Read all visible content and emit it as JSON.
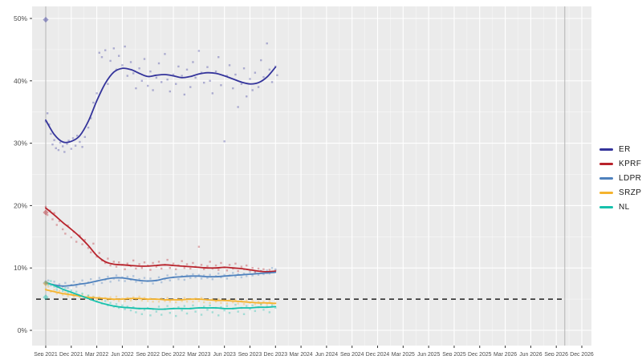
{
  "chart_data": {
    "type": "scatter",
    "title": "",
    "description": "Opinion polling trend chart for Russian parties, Sep 2021 - Dec 2026 axis, data through Dec 2023",
    "ylabel": "",
    "xlabel": "",
    "ylim": [
      0,
      50
    ],
    "y_tick_labels": [
      "0%",
      "10%",
      "20%",
      "30%",
      "40%",
      "50%"
    ],
    "y_tick_values": [
      0,
      10,
      20,
      30,
      40,
      50
    ],
    "x_tick_labels": [
      "Sep 2021",
      "Dec 2021",
      "Mar 2022",
      "Jun 2022",
      "Sep 2022",
      "Dec 2022",
      "Mar 2023",
      "Jun 2023",
      "Sep 2023",
      "Dec 2023",
      "Mar 2024",
      "Jun 2024",
      "Sep 2024",
      "Dec 2024",
      "Mar 2025",
      "Jun 2025",
      "Sep 2025",
      "Dec 2025",
      "Mar 2026",
      "Jun 2026",
      "Sep 2026",
      "Dec 2026"
    ],
    "months_per_tick": 3,
    "grid": true,
    "legend_position": "right",
    "panel_bg": "#ebebeb",
    "grid_color": "#ffffff",
    "axis_text_color": "#4d4d4d",
    "threshold": {
      "value": 5,
      "color": "#3d3d3d",
      "style": "dashed"
    },
    "event_lines": {
      "months": [
        0,
        61
      ],
      "color": "#b3b3b3"
    },
    "election_markers": {
      "month": 0,
      "shape": "diamond",
      "opacity": 0.45
    },
    "series": [
      {
        "name": "ER",
        "color": "#34349b",
        "election_result": 49.8,
        "trend_months_step": 1,
        "trend": [
          33.7,
          31.4,
          30.2,
          30.3,
          31.2,
          33.5,
          36.8,
          39.6,
          41.4,
          42.0,
          41.8,
          41.2,
          40.7,
          40.9,
          41.0,
          40.8,
          40.5,
          40.7,
          41.1,
          41.3,
          41.2,
          40.8,
          40.3,
          39.8,
          39.5,
          39.7,
          40.6,
          42.2
        ],
        "points": [
          0,
          33.5,
          0.2,
          34.8,
          0.4,
          33.0,
          0.6,
          31.5,
          0.8,
          29.8,
          1.0,
          30.5,
          1.2,
          29.2,
          1.5,
          28.9,
          1.7,
          30.1,
          2.0,
          29.5,
          2.2,
          28.6,
          2.5,
          29.9,
          2.7,
          30.4,
          3.0,
          29.1,
          3.2,
          30.8,
          3.5,
          29.6,
          3.7,
          31.2,
          4.0,
          30.2,
          4.3,
          29.4,
          4.6,
          31.0,
          5.0,
          32.5,
          5.3,
          34.0,
          5.6,
          36.5,
          6.0,
          38.0,
          6.3,
          44.5,
          6.6,
          43.8,
          7.0,
          44.9,
          7.3,
          39.5,
          7.6,
          43.2,
          8.0,
          45.2,
          8.3,
          41.8,
          8.6,
          44.0,
          9.0,
          42.5,
          9.3,
          45.5,
          9.6,
          40.8,
          10.0,
          43.0,
          10.3,
          41.2,
          10.6,
          38.8,
          11.0,
          42.0,
          11.3,
          40.0,
          11.6,
          43.5,
          12.0,
          39.2,
          12.3,
          41.5,
          12.6,
          38.5,
          13.0,
          40.5,
          13.3,
          42.8,
          13.6,
          39.8,
          14.0,
          44.3,
          14.3,
          40.2,
          14.6,
          38.3,
          15.0,
          41.0,
          15.3,
          39.5,
          15.6,
          42.3,
          16.0,
          40.8,
          16.3,
          37.8,
          16.6,
          41.8,
          17.0,
          39.0,
          17.3,
          43.0,
          17.6,
          40.5,
          18.0,
          44.8,
          18.3,
          41.3,
          18.6,
          39.7,
          19.0,
          42.2,
          19.3,
          40.0,
          19.6,
          38.0,
          20.0,
          41.5,
          20.3,
          43.8,
          20.6,
          39.3,
          21.0,
          30.3,
          21.3,
          40.8,
          21.6,
          42.5,
          22.0,
          38.8,
          22.3,
          41.0,
          22.6,
          35.8,
          23.0,
          39.5,
          23.3,
          42.0,
          23.6,
          37.5,
          24.0,
          40.3,
          24.3,
          38.5,
          24.6,
          41.3,
          25.0,
          39.0,
          25.3,
          43.3,
          25.6,
          40.6,
          26.0,
          46.0,
          26.3,
          41.8,
          26.6,
          39.8,
          27.0,
          42.3,
          27.2,
          40.9
        ]
      },
      {
        "name": "KPRF",
        "color": "#b8222b",
        "election_result": 18.9,
        "trend_months_step": 1,
        "trend": [
          19.6,
          18.5,
          17.3,
          16.2,
          15.0,
          13.6,
          12.0,
          11.0,
          10.6,
          10.5,
          10.4,
          10.3,
          10.3,
          10.4,
          10.5,
          10.4,
          10.3,
          10.2,
          10.1,
          10.0,
          10.0,
          10.1,
          10.0,
          9.9,
          9.7,
          9.5,
          9.4,
          9.5
        ],
        "points": [
          0,
          19.8,
          0.2,
          18.5,
          0.5,
          19.2,
          0.8,
          17.8,
          1.0,
          18.8,
          1.3,
          16.9,
          1.6,
          17.5,
          2.0,
          16.2,
          2.3,
          15.5,
          2.6,
          16.8,
          3.0,
          14.9,
          3.3,
          15.8,
          3.6,
          14.2,
          4.0,
          15.2,
          4.3,
          13.8,
          4.6,
          14.5,
          5.0,
          13.2,
          5.3,
          12.5,
          5.6,
          13.9,
          6.0,
          11.8,
          6.3,
          12.4,
          6.6,
          11.2,
          7.0,
          10.8,
          7.3,
          11.5,
          7.6,
          10.4,
          8.0,
          11.0,
          8.3,
          10.2,
          8.6,
          10.9,
          9.0,
          10.5,
          9.3,
          9.8,
          9.6,
          10.7,
          10.0,
          10.3,
          10.3,
          11.2,
          10.6,
          9.9,
          11.0,
          10.6,
          11.3,
          10.0,
          11.6,
          10.9,
          12.0,
          10.4,
          12.3,
          9.7,
          12.6,
          10.8,
          13.0,
          10.2,
          13.3,
          11.0,
          13.6,
          9.9,
          14.0,
          10.5,
          14.3,
          11.3,
          14.6,
          10.0,
          15.0,
          10.7,
          15.3,
          9.8,
          15.6,
          10.4,
          16.0,
          11.1,
          16.3,
          10.0,
          16.6,
          10.6,
          17.0,
          9.9,
          17.3,
          10.8,
          17.6,
          10.2,
          18.0,
          13.4,
          18.3,
          10.5,
          18.6,
          9.8,
          19.0,
          10.3,
          19.3,
          11.0,
          19.6,
          9.9,
          20.0,
          10.4,
          20.3,
          9.7,
          20.6,
          10.8,
          21.0,
          10.1,
          21.3,
          9.6,
          21.6,
          10.5,
          22.0,
          9.9,
          22.3,
          10.7,
          22.6,
          9.5,
          23.0,
          10.2,
          23.3,
          9.8,
          23.6,
          10.4,
          24.0,
          9.6,
          24.3,
          10.0,
          24.6,
          9.3,
          25.0,
          9.9,
          25.3,
          9.5,
          25.6,
          9.8,
          26.0,
          9.2,
          26.3,
          9.7,
          26.6,
          9.4,
          27.0,
          9.6
        ]
      },
      {
        "name": "LDPR",
        "color": "#4e81bd",
        "election_result": 7.6,
        "trend_months_step": 1,
        "trend": [
          7.6,
          7.3,
          7.1,
          7.2,
          7.4,
          7.6,
          7.9,
          8.2,
          8.4,
          8.4,
          8.2,
          8.0,
          7.9,
          8.0,
          8.3,
          8.5,
          8.6,
          8.7,
          8.7,
          8.6,
          8.6,
          8.7,
          8.8,
          8.9,
          9.0,
          9.1,
          9.2,
          9.3
        ],
        "points": [
          0,
          7.5,
          0.3,
          8.0,
          0.6,
          7.2,
          1.0,
          7.8,
          1.3,
          6.9,
          1.6,
          7.4,
          2.0,
          7.0,
          2.3,
          7.6,
          2.6,
          6.8,
          3.0,
          7.3,
          3.3,
          7.8,
          3.6,
          7.0,
          4.0,
          7.5,
          4.3,
          8.0,
          4.6,
          7.2,
          5.0,
          7.7,
          5.3,
          8.2,
          5.6,
          7.4,
          6.0,
          7.9,
          6.3,
          8.4,
          6.6,
          7.6,
          7.0,
          8.1,
          7.3,
          8.6,
          7.6,
          7.8,
          8.0,
          8.3,
          8.3,
          8.8,
          8.6,
          8.0,
          9.0,
          8.5,
          9.3,
          7.9,
          9.6,
          8.6,
          10.0,
          8.1,
          10.3,
          8.7,
          10.6,
          7.8,
          11.0,
          8.2,
          11.3,
          7.6,
          11.6,
          8.4,
          12.0,
          7.9,
          12.3,
          8.3,
          12.6,
          7.5,
          13.0,
          8.0,
          13.3,
          8.5,
          13.6,
          7.7,
          14.0,
          8.2,
          14.3,
          8.8,
          14.6,
          8.0,
          15.0,
          8.5,
          15.3,
          9.0,
          15.6,
          8.2,
          16.0,
          8.7,
          16.3,
          8.1,
          16.6,
          8.8,
          17.0,
          8.4,
          17.3,
          9.0,
          17.6,
          8.5,
          18.0,
          8.9,
          18.3,
          8.3,
          18.6,
          8.8,
          19.0,
          8.4,
          19.3,
          8.9,
          19.6,
          8.2,
          20.0,
          8.7,
          20.3,
          9.1,
          20.6,
          8.5,
          21.0,
          8.9,
          21.3,
          8.3,
          21.6,
          8.8,
          22.0,
          9.2,
          22.3,
          8.6,
          22.6,
          9.0,
          23.0,
          8.5,
          23.3,
          9.1,
          23.6,
          8.7,
          24.0,
          9.3,
          24.3,
          8.8,
          24.6,
          9.4,
          25.0,
          8.9,
          25.3,
          9.5,
          25.6,
          9.0,
          26.0,
          9.6,
          26.3,
          9.1,
          26.6,
          10.0,
          27.0,
          9.8
        ]
      },
      {
        "name": "SRZP",
        "color": "#f5b32e",
        "election_result": 7.5,
        "trend_months_step": 1,
        "trend": [
          6.5,
          6.2,
          5.9,
          5.7,
          5.5,
          5.3,
          5.2,
          5.1,
          5.0,
          5.0,
          5.1,
          5.1,
          5.0,
          5.0,
          4.9,
          4.9,
          4.9,
          5.0,
          5.0,
          4.9,
          4.8,
          4.8,
          4.7,
          4.6,
          4.5,
          4.4,
          4.4,
          4.3
        ],
        "points": [
          0,
          6.6,
          0.3,
          7.0,
          0.6,
          6.2,
          1.0,
          6.5,
          1.3,
          5.9,
          1.6,
          6.3,
          2.0,
          5.7,
          2.3,
          6.1,
          2.6,
          5.5,
          3.0,
          5.9,
          3.3,
          5.4,
          3.6,
          5.8,
          4.0,
          5.3,
          4.3,
          5.7,
          4.6,
          5.1,
          5.0,
          5.5,
          5.3,
          5.0,
          5.6,
          5.4,
          6.0,
          4.9,
          6.3,
          5.3,
          6.6,
          4.8,
          7.0,
          5.2,
          7.3,
          4.8,
          7.6,
          5.3,
          8.0,
          4.9,
          8.3,
          5.4,
          8.6,
          4.7,
          9.0,
          5.1,
          9.3,
          4.7,
          9.6,
          5.2,
          10.0,
          4.8,
          10.3,
          5.3,
          10.6,
          4.9,
          11.0,
          5.4,
          11.3,
          4.8,
          11.6,
          5.2,
          12.0,
          4.7,
          12.3,
          5.1,
          12.6,
          4.6,
          13.0,
          5.0,
          13.3,
          4.6,
          13.6,
          5.1,
          14.0,
          4.7,
          14.3,
          5.2,
          14.6,
          4.6,
          15.0,
          5.0,
          15.3,
          4.5,
          15.6,
          5.1,
          16.0,
          4.7,
          16.3,
          5.2,
          16.6,
          4.6,
          17.0,
          5.0,
          17.3,
          4.6,
          17.6,
          5.1,
          18.0,
          4.7,
          18.3,
          5.2,
          18.6,
          4.5,
          19.0,
          4.9,
          19.3,
          4.4,
          19.6,
          5.0,
          20.0,
          4.6,
          20.3,
          5.0,
          20.6,
          4.4,
          21.0,
          4.8,
          21.3,
          4.3,
          21.6,
          4.9,
          22.0,
          4.5,
          22.3,
          4.9,
          22.6,
          4.3,
          23.0,
          4.7,
          23.3,
          4.2,
          23.6,
          4.8,
          24.0,
          4.4,
          24.3,
          4.8,
          24.6,
          4.2,
          25.0,
          4.6,
          25.3,
          4.1,
          25.6,
          4.6,
          26.0,
          4.2,
          26.3,
          4.7,
          26.6,
          4.3,
          27.0,
          4.4
        ]
      },
      {
        "name": "NL",
        "color": "#17c1ac",
        "election_result": 5.3,
        "trend_months_step": 1,
        "trend": [
          7.7,
          7.2,
          6.6,
          6.1,
          5.6,
          5.1,
          4.6,
          4.2,
          3.9,
          3.7,
          3.6,
          3.5,
          3.5,
          3.4,
          3.4,
          3.5,
          3.5,
          3.5,
          3.6,
          3.6,
          3.6,
          3.5,
          3.5,
          3.6,
          3.6,
          3.7,
          3.7,
          3.8
        ],
        "points": [
          0,
          7.8,
          0.3,
          7.3,
          0.6,
          7.9,
          1.0,
          7.0,
          1.3,
          6.5,
          1.6,
          7.1,
          2.0,
          6.3,
          2.3,
          6.8,
          2.6,
          6.0,
          3.0,
          6.4,
          3.3,
          5.8,
          3.6,
          6.2,
          4.0,
          5.5,
          4.3,
          5.9,
          4.6,
          5.2,
          5.0,
          5.6,
          5.3,
          4.9,
          5.6,
          5.3,
          6.0,
          4.6,
          6.3,
          5.0,
          6.6,
          4.3,
          7.0,
          4.7,
          7.3,
          4.0,
          7.6,
          4.4,
          8.0,
          3.8,
          8.3,
          4.2,
          8.6,
          3.6,
          9.0,
          4.0,
          9.3,
          3.4,
          9.6,
          3.8,
          10.0,
          3.2,
          10.3,
          3.7,
          10.6,
          2.9,
          11.0,
          3.5,
          11.3,
          2.6,
          11.6,
          3.3,
          12.0,
          3.6,
          12.3,
          2.4,
          12.6,
          3.4,
          13.0,
          3.0,
          13.3,
          3.8,
          13.6,
          2.5,
          14.0,
          3.4,
          14.3,
          3.9,
          14.6,
          2.8,
          15.0,
          3.5,
          15.3,
          2.3,
          15.6,
          3.7,
          16.0,
          3.2,
          16.3,
          3.9,
          16.6,
          2.7,
          17.0,
          3.5,
          17.3,
          4.0,
          17.6,
          3.0,
          18.0,
          3.6,
          18.3,
          2.5,
          18.6,
          3.8,
          19.0,
          3.3,
          19.3,
          4.0,
          19.6,
          2.9,
          20.0,
          3.6,
          20.3,
          2.4,
          20.6,
          3.7,
          21.0,
          3.2,
          21.3,
          3.9,
          21.6,
          2.8,
          22.0,
          3.5,
          22.3,
          4.1,
          22.6,
          3.0,
          23.0,
          3.6,
          23.3,
          2.6,
          23.6,
          3.9,
          24.0,
          3.4,
          24.3,
          4.0,
          24.6,
          3.1,
          25.0,
          3.7,
          25.3,
          4.2,
          25.6,
          3.3,
          26.0,
          3.8,
          26.3,
          2.9,
          26.6,
          4.0,
          27.0,
          3.6
        ]
      }
    ]
  }
}
